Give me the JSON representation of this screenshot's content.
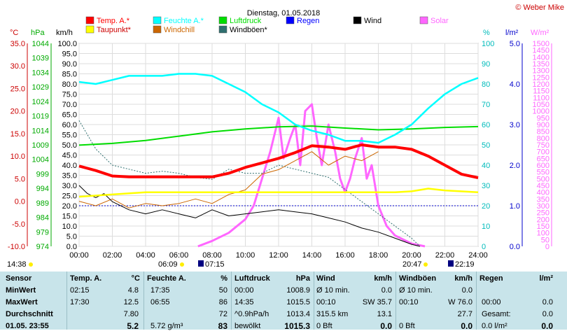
{
  "title": "Dienstag, 01.05.2018",
  "copyright": "© Weber Mike",
  "legend": [
    {
      "label": "Temp. A.*",
      "color": "#ff0000"
    },
    {
      "label": "Feuchte A.*",
      "color": "#00ffff"
    },
    {
      "label": "Luftdruck",
      "color": "#00dd00"
    },
    {
      "label": "Regen",
      "color": "#0000ff"
    },
    {
      "label": "Wind",
      "color": "#000000"
    },
    {
      "label": "Solar",
      "color": "#ff66ff"
    },
    {
      "label": "Taupunkt*",
      "color": "#ffff00"
    },
    {
      "label": "Windchill",
      "color": "#cc6600"
    },
    {
      "label": "Windböen*",
      "color": "#2f6f6f"
    }
  ],
  "axis_headers": {
    "temp": "°C",
    "press": "hPa",
    "wind": "km/h",
    "hum": "%",
    "rain": "l/m²",
    "solar": "W/m²"
  },
  "chart_data": {
    "type": "line",
    "x_ticks": [
      "00:00",
      "02:00",
      "04:00",
      "06:00",
      "08:00",
      "10:00",
      "12:00",
      "14:00",
      "16:00",
      "18:00",
      "20:00",
      "22:00",
      "24:00"
    ],
    "temp_ticks": [
      "35.0",
      "30.0",
      "25.0",
      "20.0",
      "15.0",
      "10.0",
      "5.0",
      "0.0",
      "-5.0",
      "-10.0"
    ],
    "press_ticks": [
      "1044",
      "1039",
      "1034",
      "1029",
      "1024",
      "1019",
      "1014",
      "1009",
      "1004",
      "999",
      "994",
      "989",
      "984",
      "979",
      "974"
    ],
    "wind_ticks": [
      "100.0",
      "95.0",
      "90.0",
      "85.0",
      "80.0",
      "75.0",
      "70.0",
      "65.0",
      "60.0",
      "55.0",
      "50.0",
      "45.0",
      "40.0",
      "35.0",
      "30.0",
      "25.0",
      "20.0",
      "15.0",
      "10.0",
      "5.0",
      "0.0"
    ],
    "hum_ticks": [
      "100",
      "90",
      "80",
      "70",
      "60",
      "50",
      "40",
      "30",
      "20",
      "10",
      "0"
    ],
    "rain_ticks": [
      "5.0",
      "4.0",
      "3.0",
      "2.0",
      "1.0",
      "0.0"
    ],
    "solar_ticks": [
      "1500",
      "1450",
      "1400",
      "1350",
      "1300",
      "1250",
      "1200",
      "1150",
      "1100",
      "1050",
      "1000",
      "950",
      "900",
      "850",
      "800",
      "750",
      "700",
      "650",
      "600",
      "550",
      "500",
      "450",
      "400",
      "350",
      "300",
      "250",
      "200",
      "150",
      "100",
      "50",
      "0"
    ],
    "ylim_temp": [
      -10,
      35
    ],
    "ylim_press": [
      974,
      1044
    ],
    "ylim_wind": [
      0,
      100
    ],
    "ylim_hum": [
      0,
      100
    ],
    "ylim_rain": [
      0,
      5
    ],
    "ylim_solar": [
      0,
      1500
    ],
    "series": [
      {
        "name": "Temp. A.*",
        "axis": "temp",
        "x": [
          0,
          1,
          2,
          3,
          4,
          5,
          6,
          7,
          8,
          9,
          10,
          11,
          12,
          13,
          14,
          15,
          16,
          17,
          18,
          19,
          20,
          21,
          22,
          23,
          24
        ],
        "values": [
          7.8,
          6.8,
          5.6,
          5.4,
          5.4,
          5.4,
          5.4,
          5.4,
          5.4,
          6.2,
          7.5,
          8.5,
          9.5,
          10.8,
          12.3,
          12.0,
          11.5,
          12.5,
          12.0,
          12.0,
          11.5,
          10.0,
          8.0,
          6.0,
          5.2
        ]
      },
      {
        "name": "Feuchte A.*",
        "axis": "hum",
        "x": [
          0,
          1,
          2,
          3,
          4,
          5,
          6,
          7,
          8,
          9,
          10,
          11,
          12,
          13,
          14,
          15,
          16,
          17,
          18,
          19,
          20,
          21,
          22,
          23,
          24
        ],
        "values": [
          81,
          80,
          82,
          84,
          84,
          84,
          85,
          85,
          84,
          80,
          76,
          70,
          66,
          60,
          57,
          55,
          52,
          52,
          51,
          55,
          60,
          68,
          75,
          80,
          83
        ]
      },
      {
        "name": "Luftdruck",
        "axis": "press",
        "x": [
          0,
          2,
          4,
          6,
          8,
          10,
          12,
          14,
          16,
          18,
          20,
          22,
          24
        ],
        "values": [
          1008.9,
          1009.5,
          1010.5,
          1012.0,
          1013.5,
          1014.5,
          1015.2,
          1015.5,
          1014.8,
          1014.2,
          1014.5,
          1015.0,
          1015.3
        ]
      },
      {
        "name": "Taupunkt*",
        "axis": "temp",
        "x": [
          0,
          2,
          4,
          6,
          8,
          10,
          12,
          14,
          16,
          18,
          19,
          20,
          21,
          22,
          24
        ],
        "values": [
          1.0,
          1.5,
          2.0,
          2.0,
          2.0,
          2.0,
          2.0,
          2.0,
          2.0,
          2.0,
          2.0,
          2.2,
          2.8,
          2.4,
          2.0
        ]
      },
      {
        "name": "Wind",
        "axis": "wind",
        "x": [
          0,
          0.5,
          1,
          1.5,
          2,
          3,
          4,
          5,
          6,
          7,
          8,
          9,
          10,
          11,
          12,
          13,
          14,
          15,
          16,
          17,
          18,
          19,
          20,
          20.5
        ],
        "values": [
          30,
          26,
          24,
          26,
          22,
          18,
          16,
          18,
          16,
          14,
          18,
          15,
          16,
          17,
          18,
          17,
          16,
          14,
          12,
          9,
          7,
          4,
          1,
          0
        ]
      },
      {
        "name": "Windchill",
        "axis": "temp",
        "x": [
          0,
          1,
          2,
          3,
          4,
          5,
          6,
          7,
          8,
          9,
          10,
          11,
          12,
          13,
          14,
          15,
          16,
          17,
          18
        ],
        "values": [
          0.0,
          -1.0,
          0.5,
          -1.5,
          -0.5,
          -1.0,
          -0.5,
          0.5,
          -0.5,
          1.5,
          2.5,
          6.0,
          7.0,
          9.0,
          11.0,
          8.0,
          10.0,
          9.0,
          11.0
        ]
      },
      {
        "name": "Windböen*",
        "axis": "wind",
        "x": [
          0,
          0.5,
          1,
          2,
          3,
          4,
          5,
          6,
          7,
          8,
          9,
          10,
          11,
          12,
          13,
          14,
          15,
          16,
          17,
          18,
          19,
          20,
          20.5
        ],
        "values": [
          62,
          55,
          48,
          40,
          38,
          36,
          37,
          36,
          34,
          33,
          38,
          36,
          36,
          40,
          38,
          36,
          34,
          28,
          22,
          16,
          10,
          4,
          0
        ]
      },
      {
        "name": "Solar",
        "axis": "solar",
        "x": [
          7.15,
          8,
          9,
          10,
          10.5,
          11,
          11.5,
          12,
          12.3,
          12.7,
          13,
          13.3,
          13.6,
          14,
          14.3,
          14.6,
          15,
          15.4,
          15.7,
          16,
          16.3,
          16.6,
          17,
          17.3,
          17.6,
          18,
          18.5,
          19,
          20,
          20.8
        ],
        "values": [
          0,
          40,
          100,
          200,
          300,
          500,
          700,
          950,
          650,
          800,
          900,
          600,
          1000,
          1050,
          800,
          600,
          900,
          700,
          500,
          400,
          500,
          650,
          800,
          500,
          600,
          300,
          150,
          80,
          20,
          0
        ]
      }
    ]
  },
  "time_marks": {
    "now": "14:38",
    "sunrise": "06:09",
    "sunrise2": "07:15",
    "sunset": "20:47",
    "sunset2": "22:19"
  },
  "stats": {
    "headers": {
      "sensor": "Sensor",
      "temp": "Temp. A.",
      "temp_unit": "°C",
      "hum": "Feuchte A.",
      "hum_unit": "%",
      "press": "Luftdruck",
      "press_unit": "hPa",
      "wind": "Wind",
      "wind_unit": "km/h",
      "gust": "Windböen",
      "gust_unit": "km/h",
      "rain": "Regen",
      "rain_unit": "l/m²"
    },
    "rows": [
      {
        "label": "MinWert",
        "temp_t": "02:15",
        "temp_v": "4.8",
        "hum_t": "17:35",
        "hum_v": "50",
        "press_t": "00:00",
        "press_v": "1008.9",
        "wind_t": "Ø 10 min.",
        "wind_v": "0.0",
        "gust_t": "Ø 10 min.",
        "gust_v": "0.0",
        "rain_t": "",
        "rain_v": ""
      },
      {
        "label": "MaxWert",
        "temp_t": "17:30",
        "temp_v": "12.5",
        "hum_t": "06:55",
        "hum_v": "86",
        "press_t": "14:35",
        "press_v": "1015.5",
        "wind_t": "00:10",
        "wind_dir": "SW 35.7",
        "wind_v": "",
        "gust_t": "00:10",
        "gust_v": "W 76.0",
        "rain_t": "00:00",
        "rain_v": "0.0"
      },
      {
        "label": "Durchschnitt",
        "temp_t": "",
        "temp_v": "7.80",
        "hum_t": "",
        "hum_v": "72",
        "press_t": "^0.9hPa/h",
        "press_v": "1013.4",
        "wind_t": "315.5 km",
        "wind_v": "13.1",
        "gust_t": "",
        "gust_v": "27.7",
        "rain_t": "Gesamt:",
        "rain_v": "0.0"
      },
      {
        "label": "01.05. 23:55",
        "temp_t": "",
        "temp_v": "5.2",
        "hum_t": "5.72 g/m³",
        "hum_v": "83",
        "press_t": "bewölkt",
        "press_v": "1015.3",
        "wind_t": "0 Bft",
        "wind_v": "0.0",
        "gust_t": "0 Bft",
        "gust_v": "0.0",
        "rain_t": "0.0 l/m²",
        "rain_v": "0.0"
      }
    ]
  }
}
